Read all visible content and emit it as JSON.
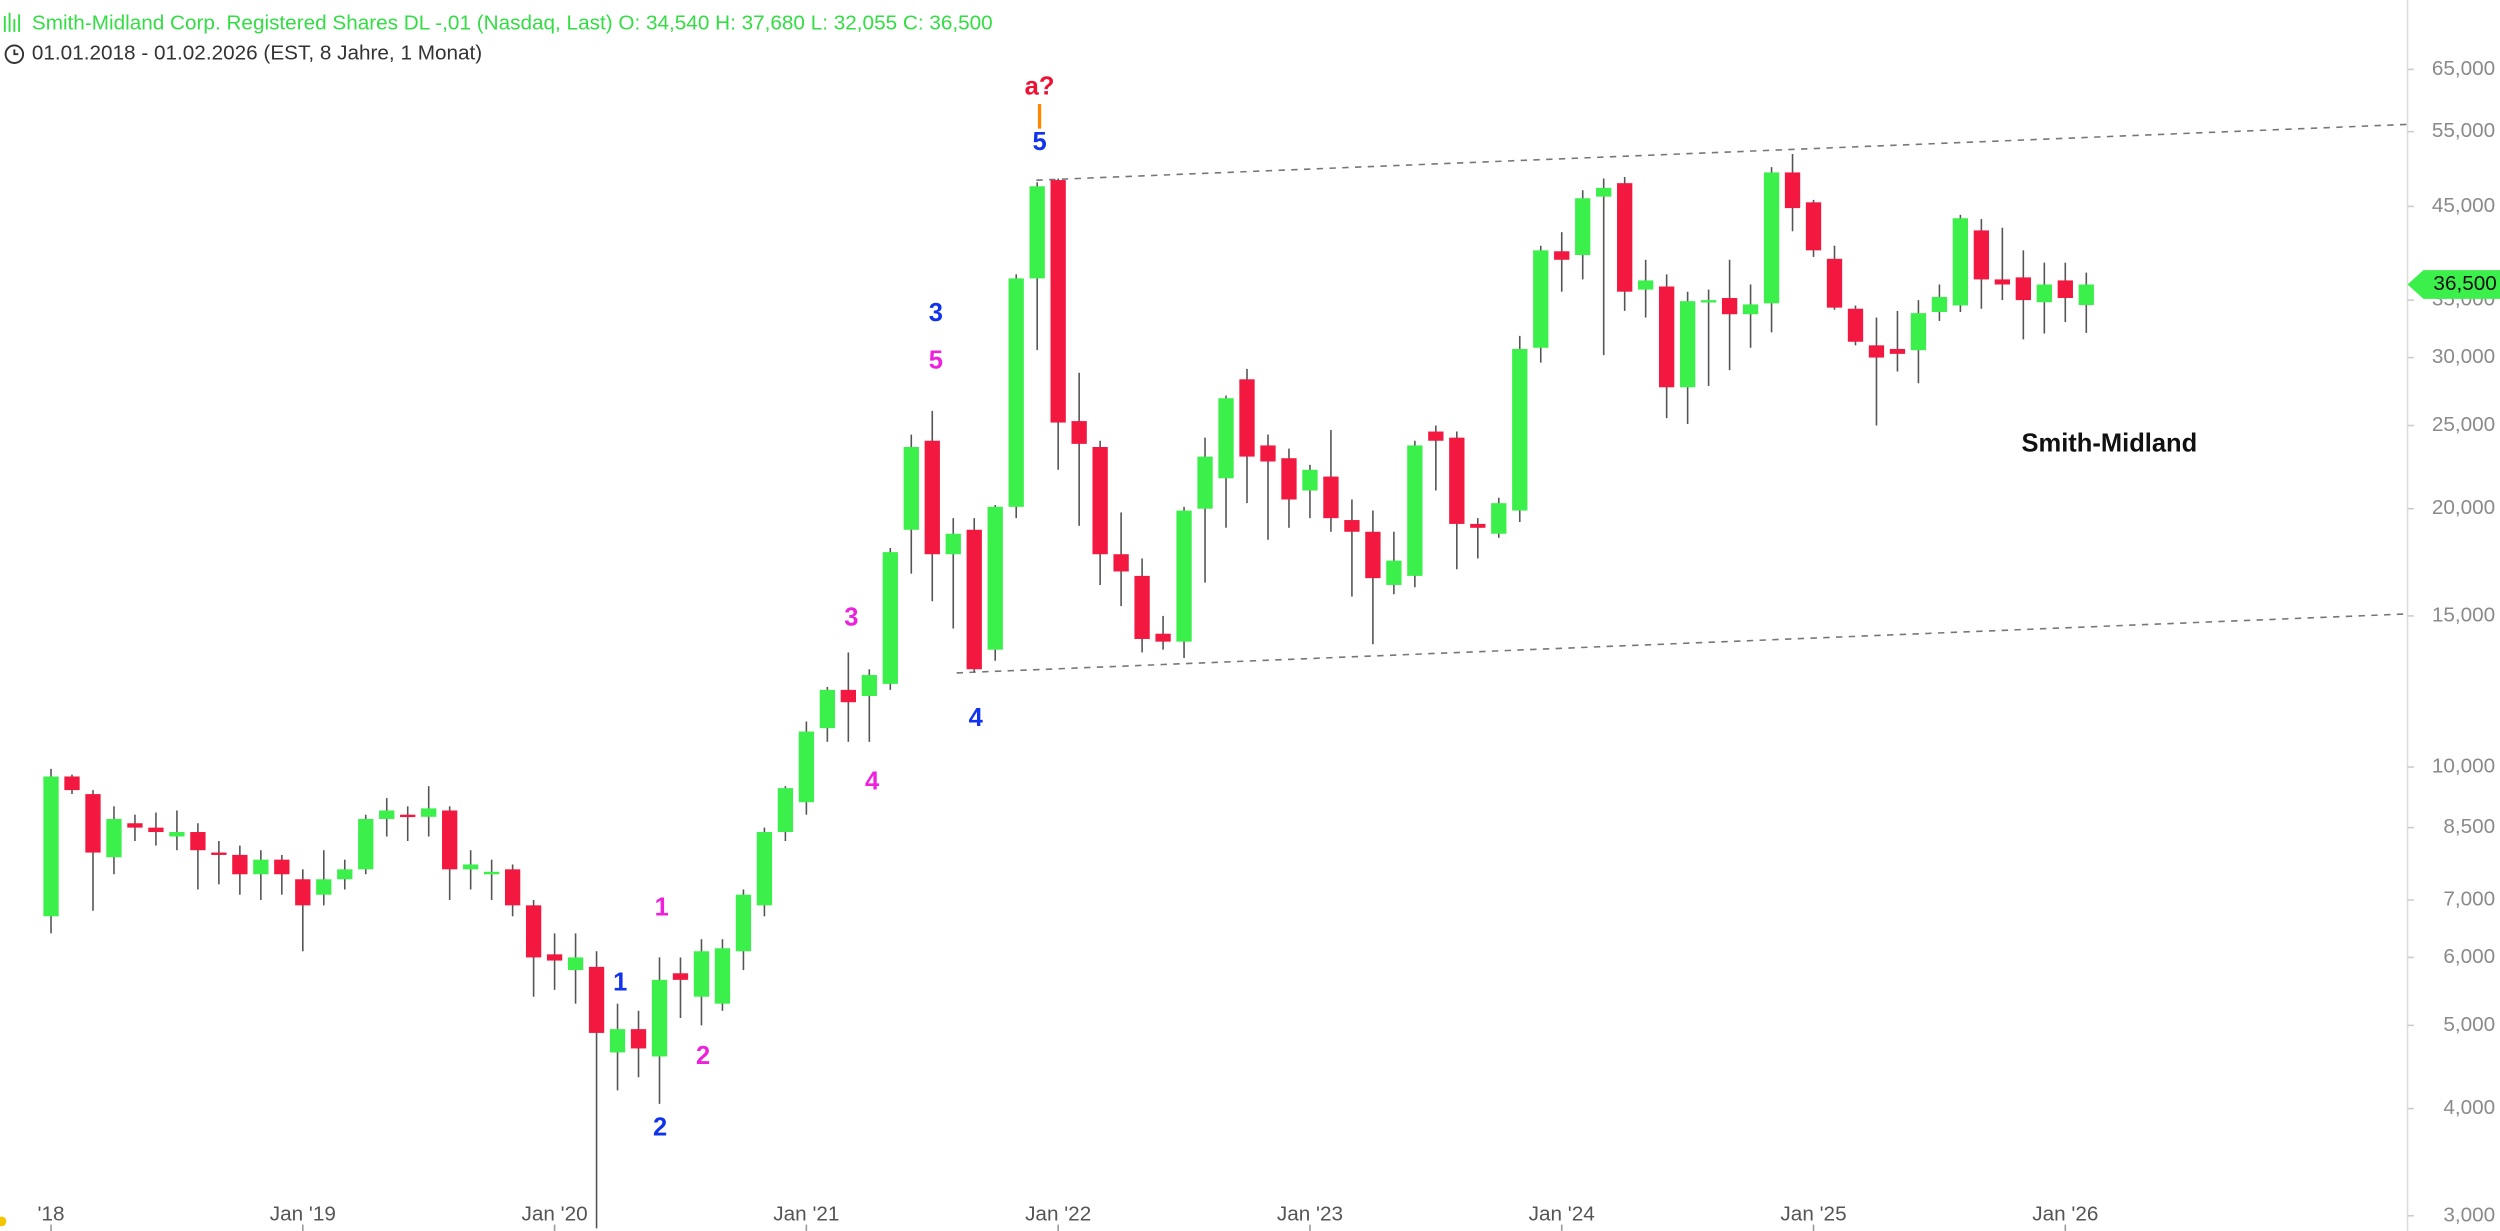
{
  "chart_data": {
    "type": "candlestick",
    "title": "Smith-Midland Corp. Registered Shares DL -,01 (Nasdaq, Last)  O: 34,540  H: 37,680  L: 32,055  C: 36,500",
    "subtitle": "01.01.2018 - 01.02.2026   (EST, 8 Jahre, 1 Monat)",
    "label": "Smith-Midland",
    "title_color": "#33dd44",
    "up_color": "#3cf04c",
    "down_color": "#f2183f",
    "wick_color": "#555555",
    "log_scale": true,
    "ylim": [
      2880,
      78300
    ],
    "yticks": [
      {
        "value": 3000,
        "label": "3,000"
      },
      {
        "value": 4000,
        "label": "4,000"
      },
      {
        "value": 5000,
        "label": "5,000"
      },
      {
        "value": 6000,
        "label": "6,000"
      },
      {
        "value": 7000,
        "label": "7,000"
      },
      {
        "value": 8500,
        "label": "8,500"
      },
      {
        "value": 10000,
        "label": "10,000"
      },
      {
        "value": 15000,
        "label": "15,000"
      },
      {
        "value": 20000,
        "label": "20,000"
      },
      {
        "value": 25000,
        "label": "25,000"
      },
      {
        "value": 30000,
        "label": "30,000"
      },
      {
        "value": 35000,
        "label": "35,000"
      },
      {
        "value": 45000,
        "label": "45,000"
      },
      {
        "value": 55000,
        "label": "55,000"
      },
      {
        "value": 65000,
        "label": "65,000"
      }
    ],
    "last_price": {
      "value": 36500,
      "label": "36,500"
    },
    "categories": [
      "'18",
      null,
      null,
      null,
      null,
      null,
      null,
      null,
      null,
      null,
      null,
      null,
      "Jan '19",
      null,
      null,
      null,
      null,
      null,
      null,
      null,
      null,
      null,
      null,
      null,
      "Jan '20",
      null,
      null,
      null,
      null,
      null,
      null,
      null,
      null,
      null,
      null,
      null,
      "Jan '21",
      null,
      null,
      null,
      null,
      null,
      null,
      null,
      null,
      null,
      null,
      null,
      "Jan '22",
      null,
      null,
      null,
      null,
      null,
      null,
      null,
      null,
      null,
      null,
      null,
      "Jan '23",
      null,
      null,
      null,
      null,
      null,
      null,
      null,
      null,
      null,
      null,
      null,
      "Jan '24",
      null,
      null,
      null,
      null,
      null,
      null,
      null,
      null,
      null,
      null,
      null,
      "Jan '25",
      null,
      null,
      null,
      null,
      null,
      null,
      null,
      null,
      null,
      null,
      null,
      "Jan '26",
      null
    ],
    "open": [
      6700,
      9750,
      9300,
      7850,
      8600,
      8500,
      8300,
      8400,
      7950,
      7900,
      7500,
      7800,
      7400,
      7100,
      7400,
      7600,
      8700,
      8800,
      8750,
      8900,
      7600,
      7500,
      7600,
      6900,
      6050,
      5800,
      5850,
      4650,
      4950,
      4600,
      5750,
      5400,
      5300,
      6100,
      6900,
      8400,
      9100,
      11100,
      12300,
      12100,
      12500,
      18900,
      24000,
      17700,
      18900,
      13700,
      20100,
      37100,
      48300,
      25300,
      23600,
      17700,
      16700,
      14300,
      14000,
      20000,
      21700,
      28300,
      23700,
      22900,
      21000,
      21800,
      19400,
      18800,
      16300,
      16700,
      24600,
      24200,
      19200,
      18700,
      19900,
      30800,
      39900,
      39500,
      46200,
      47900,
      36000,
      36300,
      27700,
      34900,
      35200,
      33700,
      34700,
      49300,
      45500,
      39100,
      34200,
      31000,
      30700,
      30600,
      33900,
      34500,
      42200,
      37000,
      37200,
      34800,
      36900,
      34540
    ],
    "high": [
      9950,
      9800,
      9400,
      9000,
      8800,
      8850,
      8900,
      8600,
      8200,
      8100,
      8000,
      7900,
      7600,
      8000,
      7800,
      8800,
      9200,
      9000,
      9500,
      9000,
      8000,
      7800,
      7700,
      7000,
      6400,
      6400,
      6100,
      5300,
      5200,
      6000,
      6000,
      6300,
      6300,
      7200,
      8500,
      9500,
      11300,
      12400,
      13600,
      13000,
      18000,
      24400,
      26000,
      19500,
      19500,
      20200,
      37500,
      48000,
      48500,
      28800,
      24000,
      19800,
      17500,
      15000,
      20100,
      24200,
      27100,
      29100,
      24400,
      23500,
      22500,
      24700,
      20500,
      19900,
      18800,
      24000,
      25000,
      24600,
      19500,
      20600,
      31800,
      40500,
      42000,
      47000,
      48500,
      48700,
      39000,
      37500,
      35800,
      36000,
      39000,
      36500,
      50000,
      51800,
      45800,
      40500,
      34500,
      33400,
      34000,
      35000,
      36500,
      44000,
      43500,
      42500,
      40000,
      38700,
      38700,
      37680
    ],
    "low": [
      6400,
      9300,
      6800,
      7500,
      8200,
      8100,
      8000,
      7200,
      7300,
      7100,
      7000,
      7100,
      6100,
      6900,
      7200,
      7500,
      8300,
      8200,
      8300,
      7000,
      7200,
      7000,
      6700,
      5400,
      5500,
      5300,
      2900,
      4200,
      4350,
      4050,
      5100,
      5000,
      5200,
      5800,
      6700,
      8200,
      8800,
      10700,
      10700,
      10700,
      12300,
      16800,
      15600,
      14500,
      12900,
      13300,
      19500,
      30600,
      22200,
      19100,
      16300,
      15400,
      13600,
      13700,
      13400,
      16400,
      19000,
      20300,
      18400,
      19000,
      19500,
      18800,
      15800,
      13900,
      15900,
      16200,
      21000,
      17000,
      17500,
      18500,
      19300,
      29600,
      35800,
      37000,
      30200,
      34000,
      33400,
      25500,
      25100,
      27800,
      29000,
      30800,
      32100,
      42100,
      39300,
      34100,
      31000,
      25000,
      28900,
      28000,
      33100,
      33900,
      34200,
      35000,
      31500,
      32000,
      33000,
      32055
    ],
    "close": [
      9750,
      9400,
      7950,
      8700,
      8500,
      8400,
      8400,
      8000,
      7900,
      7500,
      7800,
      7500,
      6900,
      7400,
      7600,
      8700,
      8900,
      8750,
      8950,
      7600,
      7700,
      7550,
      6900,
      6000,
      5950,
      6000,
      4900,
      4950,
      4700,
      5650,
      5650,
      6100,
      6150,
      7100,
      8400,
      9450,
      11000,
      12300,
      11900,
      12800,
      17800,
      23600,
      17700,
      18700,
      13000,
      20100,
      37100,
      47500,
      25200,
      23800,
      17700,
      16900,
      14100,
      14000,
      19900,
      23000,
      26900,
      23000,
      22700,
      20500,
      22200,
      19500,
      18800,
      16600,
      17400,
      23700,
      24000,
      19200,
      19000,
      20300,
      30700,
      40000,
      39000,
      46000,
      47300,
      35800,
      36900,
      27700,
      34900,
      35000,
      33700,
      34600,
      49300,
      44800,
      40000,
      34300,
      31300,
      30000,
      30300,
      33800,
      35300,
      43600,
      37000,
      36500,
      35000,
      36500,
      35200,
      36500
    ],
    "annotations": [
      {
        "text": "1",
        "color": "#ee22dd"
      },
      {
        "text": "2",
        "color": "#ee22dd"
      },
      {
        "text": "3",
        "color": "#ee22dd"
      },
      {
        "text": "4",
        "color": "#ee22dd"
      },
      {
        "text": "5",
        "color": "#ee22dd"
      },
      {
        "text": "1",
        "color": "#1133ee"
      },
      {
        "text": "2",
        "color": "#1133ee"
      },
      {
        "text": "3",
        "color": "#1133ee"
      },
      {
        "text": "4",
        "color": "#1133ee"
      },
      {
        "text": "5",
        "color": "#1133ee"
      },
      {
        "text": "a?",
        "color": "#ee1133"
      },
      {
        "text": "|",
        "color": "#ff8800"
      }
    ]
  }
}
